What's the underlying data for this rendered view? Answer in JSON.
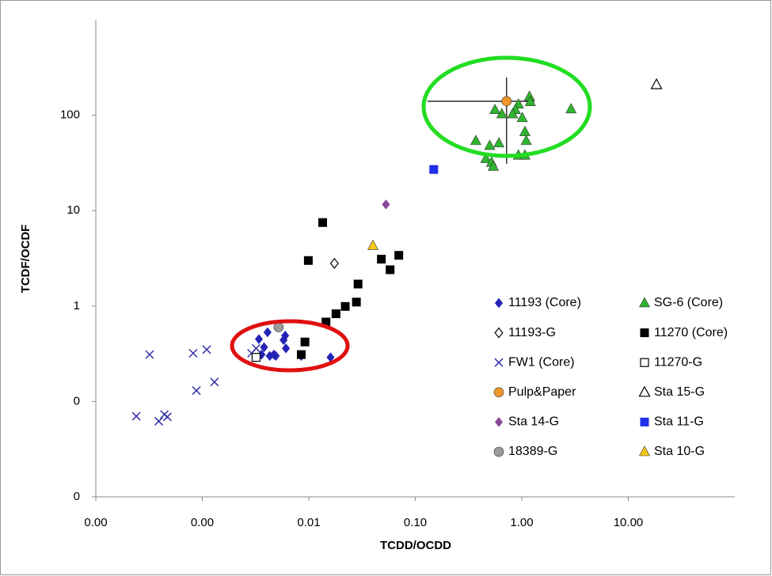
{
  "chart_data": {
    "type": "scatter",
    "x_label": "TCDD/OCDD",
    "y_label": "TCDF/OCDF",
    "x_log": true,
    "y_log": true,
    "grid": false,
    "legend": "lower right",
    "xlim": [
      0.0001,
      100
    ],
    "ylim": [
      0.01,
      1000
    ],
    "xticks": [
      {
        "value": 0.0001,
        "label": "0.00"
      },
      {
        "value": 0.001,
        "label": "0.00"
      },
      {
        "value": 0.01,
        "label": "0.01"
      },
      {
        "value": 0.1,
        "label": "0.10"
      },
      {
        "value": 1,
        "label": "1.00"
      },
      {
        "value": 10,
        "label": "10.00"
      }
    ],
    "yticks": [
      {
        "value": 0.01,
        "label": "0"
      },
      {
        "value": 0.1,
        "label": "0"
      },
      1,
      10,
      100
    ],
    "series": [
      {
        "name": "11193 (Core)",
        "color": "#2323b8",
        "marker": "diamond",
        "x": [
          0.0034,
          0.0041,
          0.0038,
          0.0036,
          0.0043,
          0.0049,
          0.0058,
          0.006,
          0.0061,
          0.0085,
          0.016,
          0.0047
        ],
        "y": [
          0.45,
          0.53,
          0.37,
          0.31,
          0.3,
          0.3,
          0.44,
          0.49,
          0.36,
          0.3,
          0.29,
          0.31
        ]
      },
      {
        "name": "SG-6 (Core)",
        "color": "#2fb52f",
        "marker": "triangle",
        "x": [
          1.18,
          1.2,
          2.9,
          0.93,
          0.87,
          0.82,
          0.65,
          0.56,
          1.01,
          1.07,
          1.1,
          0.37,
          0.61,
          0.5,
          0.46,
          0.52,
          0.54,
          0.93,
          1.07
        ],
        "y": [
          157,
          138,
          116,
          130,
          114,
          103,
          103,
          114,
          94,
          67,
          54,
          54,
          51,
          48,
          35,
          32,
          29,
          38,
          38
        ]
      },
      {
        "name": "11193-G",
        "color": "#000000",
        "marker": "open-diamond",
        "x": [
          0.0174
        ],
        "y": [
          2.8
        ]
      },
      {
        "name": "11270 (Core)",
        "color": "#000000",
        "marker": "square",
        "x": [
          0.0135,
          0.0099,
          0.048,
          0.07,
          0.058,
          0.029,
          0.028,
          0.022,
          0.018,
          0.0145,
          0.0092,
          0.0085
        ],
        "y": [
          7.5,
          3.0,
          3.1,
          3.4,
          2.4,
          1.7,
          1.1,
          0.99,
          0.83,
          0.68,
          0.42,
          0.31
        ]
      },
      {
        "name": "FW1 (Core)",
        "color": "#3434a8",
        "marker": "x",
        "x": [
          0.00032,
          0.00082,
          0.0011,
          0.0013,
          0.00088,
          0.00024,
          0.00039,
          0.00044,
          0.00047,
          0.0029,
          0.0032
        ],
        "y": [
          0.31,
          0.32,
          0.35,
          0.16,
          0.13,
          0.07,
          0.062,
          0.073,
          0.069,
          0.32,
          0.36
        ]
      },
      {
        "name": "11270-G",
        "color": "#000000",
        "marker": "open-square",
        "x": [
          0.0032
        ],
        "y": [
          0.29
        ]
      },
      {
        "name": "Pulp&Paper",
        "color": "#f0962a",
        "marker": "circle",
        "x": [
          0.72
        ],
        "y": [
          140
        ],
        "x_error": [
          0.59
        ],
        "y_error": [
          109
        ]
      },
      {
        "name": "Sta 15-G",
        "color": "#000000",
        "marker": "open-triangle",
        "x": [
          18.4
        ],
        "y": [
          209
        ]
      },
      {
        "name": "Sta 14-G",
        "color": "#8a4a9a",
        "marker": "diamond",
        "x": [
          0.053
        ],
        "y": [
          11.6
        ]
      },
      {
        "name": "Sta 11-G",
        "color": "#1f2fe8",
        "marker": "square",
        "x": [
          0.149
        ],
        "y": [
          27
        ]
      },
      {
        "name": "18389-G",
        "color": "#9a9a9a",
        "marker": "circle",
        "x": [
          0.0052
        ],
        "y": [
          0.6
        ]
      },
      {
        "name": "Sta 10-G",
        "color": "#f5c518",
        "marker": "triangle",
        "x": [
          0.04
        ],
        "y": [
          4.3
        ]
      }
    ]
  }
}
